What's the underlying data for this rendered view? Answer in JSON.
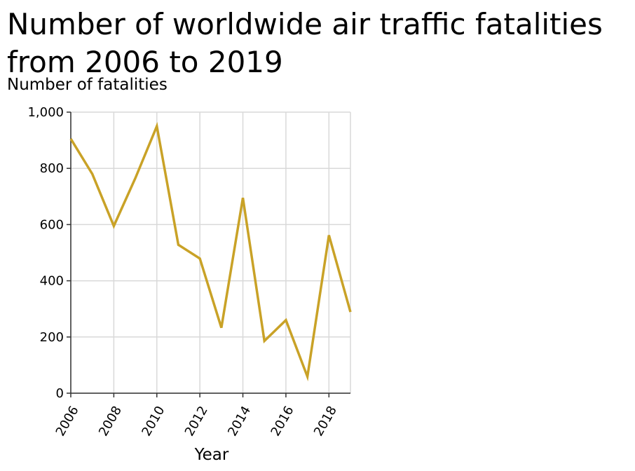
{
  "chart_data": {
    "type": "line",
    "title": "Number of worldwide air traffic fatalities from 2006 to 2019",
    "xlabel": "Year",
    "ylabel": "Number of fatalities",
    "xlim": [
      2006,
      2019
    ],
    "ylim": [
      0,
      1000
    ],
    "x_ticks": [
      2006,
      2008,
      2010,
      2012,
      2014,
      2016,
      2018
    ],
    "x_tick_labels": [
      "2006",
      "2008",
      "2010",
      "2012",
      "2014",
      "2016",
      "2018"
    ],
    "y_ticks": [
      0,
      200,
      400,
      600,
      800,
      1000
    ],
    "y_tick_labels": [
      "0",
      "200",
      "400",
      "600",
      "800",
      "1,000"
    ],
    "grid": true,
    "line_color": "#c9a227",
    "x": [
      2006,
      2007,
      2008,
      2009,
      2010,
      2011,
      2012,
      2013,
      2014,
      2015,
      2016,
      2017,
      2018,
      2019
    ],
    "series": [
      {
        "values": [
          905,
          780,
          595,
          765,
          950,
          528,
          479,
          233,
          695,
          186,
          260,
          59,
          562,
          289
        ]
      }
    ]
  }
}
